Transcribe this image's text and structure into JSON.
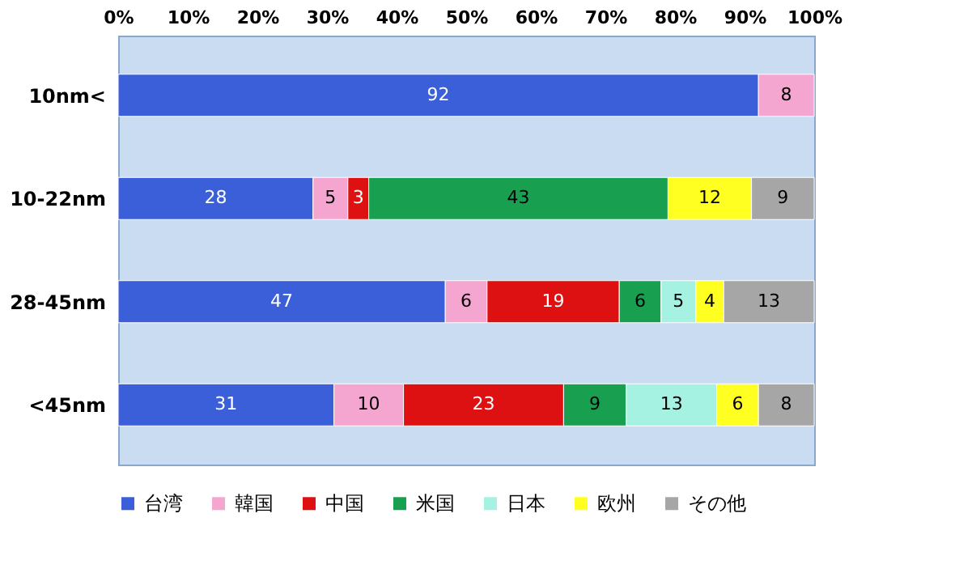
{
  "chart_data": {
    "type": "bar",
    "orientation": "horizontal",
    "stacked": true,
    "data_labels": true,
    "legend": "bottom",
    "grid": false,
    "categories": [
      "10nm<",
      "10-22nm",
      "28-45nm",
      "<45nm"
    ],
    "xlim": [
      0,
      100
    ],
    "xticks": [
      {
        "value": 0,
        "label": "0%"
      },
      {
        "value": 10,
        "label": "10%"
      },
      {
        "value": 20,
        "label": "20%"
      },
      {
        "value": 30,
        "label": "30%"
      },
      {
        "value": 40,
        "label": "40%"
      },
      {
        "value": 50,
        "label": "50%"
      },
      {
        "value": 60,
        "label": "60%"
      },
      {
        "value": 70,
        "label": "70%"
      },
      {
        "value": 80,
        "label": "80%"
      },
      {
        "value": 90,
        "label": "90%"
      },
      {
        "value": 100,
        "label": "100%"
      }
    ],
    "series": [
      {
        "name": "台湾",
        "color": "#3a5fd8",
        "values": [
          92,
          28,
          47,
          31
        ]
      },
      {
        "name": "韓国",
        "color": "#f4a6d0",
        "values": [
          8,
          5,
          6,
          10
        ]
      },
      {
        "name": "中国",
        "color": "#dd1111",
        "values": [
          null,
          3,
          19,
          23
        ]
      },
      {
        "name": "米国",
        "color": "#18a050",
        "values": [
          null,
          43,
          6,
          9
        ]
      },
      {
        "name": "日本",
        "color": "#a6f2e2",
        "values": [
          null,
          null,
          5,
          13
        ]
      },
      {
        "name": "欧州",
        "color": "#ffff22",
        "values": [
          null,
          12,
          4,
          6
        ]
      },
      {
        "name": "その他",
        "color": "#a6a6a6",
        "values": [
          null,
          9,
          13,
          8
        ]
      }
    ]
  }
}
